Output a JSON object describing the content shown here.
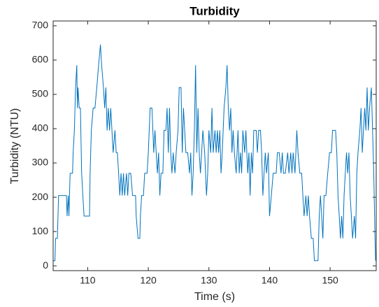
{
  "chart_data": {
    "type": "line",
    "title": "Turbidity",
    "xlabel": "Time (s)",
    "ylabel": "Turbidity (NTU)",
    "color": "#0072bd",
    "xlim": [
      104.3,
      157.6
    ],
    "xticks": [
      110,
      120,
      130,
      140,
      150
    ],
    "ylim": [
      -14,
      714
    ],
    "yticks": [
      0,
      100,
      200,
      300,
      400,
      500,
      600,
      700
    ],
    "x": [
      104.3,
      104.6,
      104.7,
      105.0,
      105.1,
      105.2,
      106.5,
      106.6,
      106.8,
      106.9,
      107.1,
      107.5,
      107.6,
      107.8,
      108.0,
      108.2,
      108.3,
      108.4,
      108.6,
      108.8,
      109.0,
      109.2,
      109.4,
      110.3,
      110.4,
      110.6,
      110.9,
      111.2,
      111.5,
      111.8,
      112.1,
      112.3,
      112.6,
      112.8,
      113.0,
      113.2,
      113.4,
      113.6,
      113.8,
      114.0,
      114.2,
      114.5,
      114.7,
      114.9,
      115.1,
      115.3,
      115.5,
      115.7,
      115.9,
      116.1,
      116.4,
      116.6,
      116.8,
      117.1,
      117.4,
      117.9,
      118.0,
      118.3,
      118.6,
      118.7,
      118.9,
      119.2,
      119.4,
      119.8,
      120.0,
      120.3,
      120.6,
      120.9,
      121.1,
      121.3,
      121.5,
      121.7,
      121.9,
      122.1,
      122.4,
      122.6,
      122.9,
      123.1,
      123.3,
      123.5,
      123.7,
      123.9,
      124.1,
      124.4,
      124.6,
      124.9,
      125.1,
      125.4,
      125.6,
      125.8,
      126.0,
      126.2,
      126.5,
      126.8,
      127.0,
      127.2,
      127.4,
      127.6,
      127.8,
      128.0,
      128.2,
      128.4,
      128.6,
      128.8,
      129.0,
      129.3,
      129.6,
      129.8,
      130.0,
      130.3,
      130.5,
      130.7,
      131.0,
      131.2,
      131.4,
      131.6,
      131.8,
      132.0,
      132.2,
      132.5,
      132.8,
      133.0,
      133.2,
      133.4,
      133.6,
      133.8,
      134.0,
      134.2,
      134.5,
      134.8,
      135.0,
      135.2,
      135.4,
      135.6,
      135.9,
      136.1,
      136.4,
      136.6,
      136.8,
      137.0,
      137.2,
      137.4,
      137.8,
      138.0,
      138.2,
      138.5,
      138.7,
      138.9,
      139.1,
      139.3,
      139.5,
      139.8,
      140.0,
      140.3,
      140.6,
      141.1,
      141.3,
      141.6,
      141.9,
      142.1,
      142.3,
      142.6,
      143.0,
      143.2,
      143.5,
      143.7,
      143.9,
      144.2,
      144.5,
      144.7,
      145.0,
      145.3,
      145.5,
      145.7,
      146.0,
      146.2,
      146.4,
      146.6,
      146.9,
      147.2,
      147.4,
      148.0,
      148.2,
      148.4,
      148.6,
      148.8,
      149.0,
      149.3,
      149.6,
      149.9,
      150.2,
      150.4,
      150.9,
      151.1,
      151.3,
      151.5,
      151.7,
      151.9,
      152.1,
      152.3,
      152.5,
      152.7,
      152.9,
      153.1,
      153.3,
      153.5,
      153.7,
      154.0,
      154.2,
      154.4,
      154.6,
      154.9,
      155.1,
      155.3,
      155.5,
      155.7,
      155.9,
      156.1,
      156.3,
      156.5,
      156.8,
      157.0,
      157.2,
      157.4,
      157.5
    ],
    "values": [
      15,
      15,
      80,
      80,
      145,
      205,
      205,
      145,
      205,
      145,
      270,
      270,
      330,
      395,
      520,
      585,
      460,
      520,
      460,
      460,
      270,
      205,
      145,
      145,
      270,
      395,
      460,
      460,
      520,
      585,
      645,
      585,
      520,
      460,
      520,
      395,
      460,
      395,
      460,
      395,
      330,
      395,
      330,
      330,
      270,
      205,
      270,
      205,
      270,
      205,
      270,
      205,
      270,
      270,
      205,
      205,
      145,
      80,
      80,
      145,
      205,
      205,
      270,
      270,
      330,
      460,
      460,
      330,
      395,
      330,
      270,
      330,
      205,
      270,
      270,
      395,
      395,
      460,
      330,
      460,
      330,
      270,
      330,
      270,
      330,
      395,
      520,
      520,
      330,
      460,
      395,
      330,
      330,
      270,
      330,
      205,
      270,
      395,
      585,
      330,
      460,
      330,
      270,
      330,
      395,
      330,
      205,
      270,
      395,
      330,
      460,
      330,
      395,
      330,
      395,
      330,
      395,
      270,
      330,
      460,
      520,
      585,
      460,
      395,
      460,
      330,
      395,
      330,
      270,
      395,
      270,
      330,
      270,
      395,
      330,
      395,
      270,
      330,
      205,
      330,
      270,
      395,
      395,
      330,
      395,
      395,
      330,
      205,
      270,
      330,
      270,
      330,
      145,
      205,
      270,
      270,
      330,
      330,
      270,
      330,
      270,
      270,
      330,
      270,
      330,
      270,
      330,
      270,
      395,
      330,
      270,
      270,
      205,
      145,
      205,
      145,
      205,
      145,
      80,
      80,
      15,
      15,
      145,
      205,
      145,
      80,
      205,
      205,
      270,
      330,
      330,
      395,
      395,
      330,
      205,
      145,
      80,
      145,
      80,
      205,
      270,
      330,
      270,
      330,
      205,
      145,
      80,
      145,
      80,
      270,
      330,
      395,
      460,
      330,
      395,
      460,
      395,
      520,
      395,
      460,
      520,
      395,
      270,
      80,
      15
    ]
  }
}
